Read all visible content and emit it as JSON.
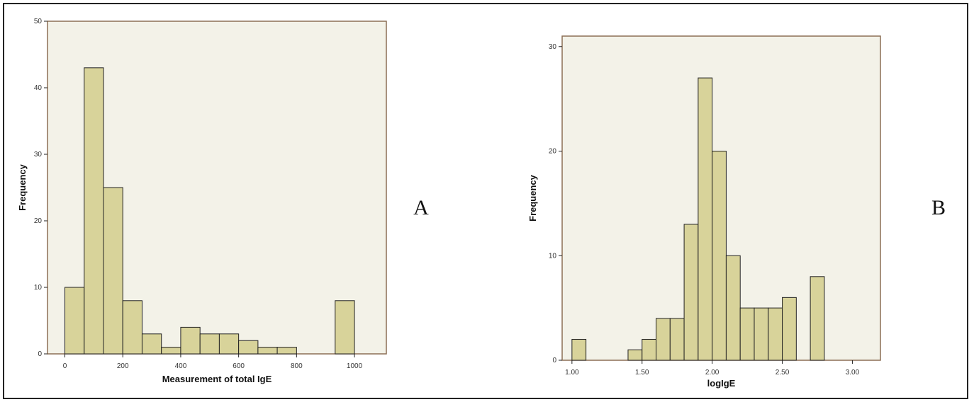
{
  "chart_data": [
    {
      "panel_label": "A",
      "type": "bar",
      "title": "",
      "xlabel": "Measurement of total IgE",
      "ylabel": "Frequency",
      "xlim": [
        -60,
        1110
      ],
      "ylim": [
        0,
        50
      ],
      "x_ticks": [
        0,
        200,
        400,
        600,
        800,
        1000
      ],
      "y_ticks": [
        0,
        10,
        20,
        30,
        40,
        50
      ],
      "bin_width": 66.7,
      "bins": [
        {
          "start": 0,
          "value": 10
        },
        {
          "start": 66.7,
          "value": 43
        },
        {
          "start": 133.3,
          "value": 25
        },
        {
          "start": 200,
          "value": 8
        },
        {
          "start": 266.7,
          "value": 3
        },
        {
          "start": 333.3,
          "value": 1
        },
        {
          "start": 400,
          "value": 4
        },
        {
          "start": 466.7,
          "value": 3
        },
        {
          "start": 533.3,
          "value": 3
        },
        {
          "start": 600,
          "value": 2
        },
        {
          "start": 666.7,
          "value": 1
        },
        {
          "start": 733.3,
          "value": 1
        },
        {
          "start": 933.3,
          "value": 8
        }
      ],
      "grid": false,
      "bar_color": "#d8d39a",
      "plot_background": "#f3f2e8"
    },
    {
      "panel_label": "B",
      "type": "bar",
      "title": "",
      "xlabel": "logIgE",
      "ylabel": "Frequency",
      "xlim": [
        0.93,
        3.2
      ],
      "ylim": [
        0,
        31
      ],
      "x_ticks": [
        "1.00",
        "1.50",
        "2.00",
        "2.50",
        "3.00"
      ],
      "y_ticks": [
        0,
        10,
        20,
        30
      ],
      "bin_width": 0.1,
      "bins": [
        {
          "start": 1.0,
          "value": 2
        },
        {
          "start": 1.4,
          "value": 1
        },
        {
          "start": 1.5,
          "value": 2
        },
        {
          "start": 1.6,
          "value": 4
        },
        {
          "start": 1.7,
          "value": 4
        },
        {
          "start": 1.8,
          "value": 13
        },
        {
          "start": 1.9,
          "value": 27
        },
        {
          "start": 2.0,
          "value": 20
        },
        {
          "start": 2.1,
          "value": 10
        },
        {
          "start": 2.2,
          "value": 5
        },
        {
          "start": 2.3,
          "value": 5
        },
        {
          "start": 2.4,
          "value": 5
        },
        {
          "start": 2.5,
          "value": 6
        },
        {
          "start": 2.7,
          "value": 8
        }
      ],
      "grid": false,
      "bar_color": "#d8d39a",
      "plot_background": "#f3f2e8"
    }
  ]
}
